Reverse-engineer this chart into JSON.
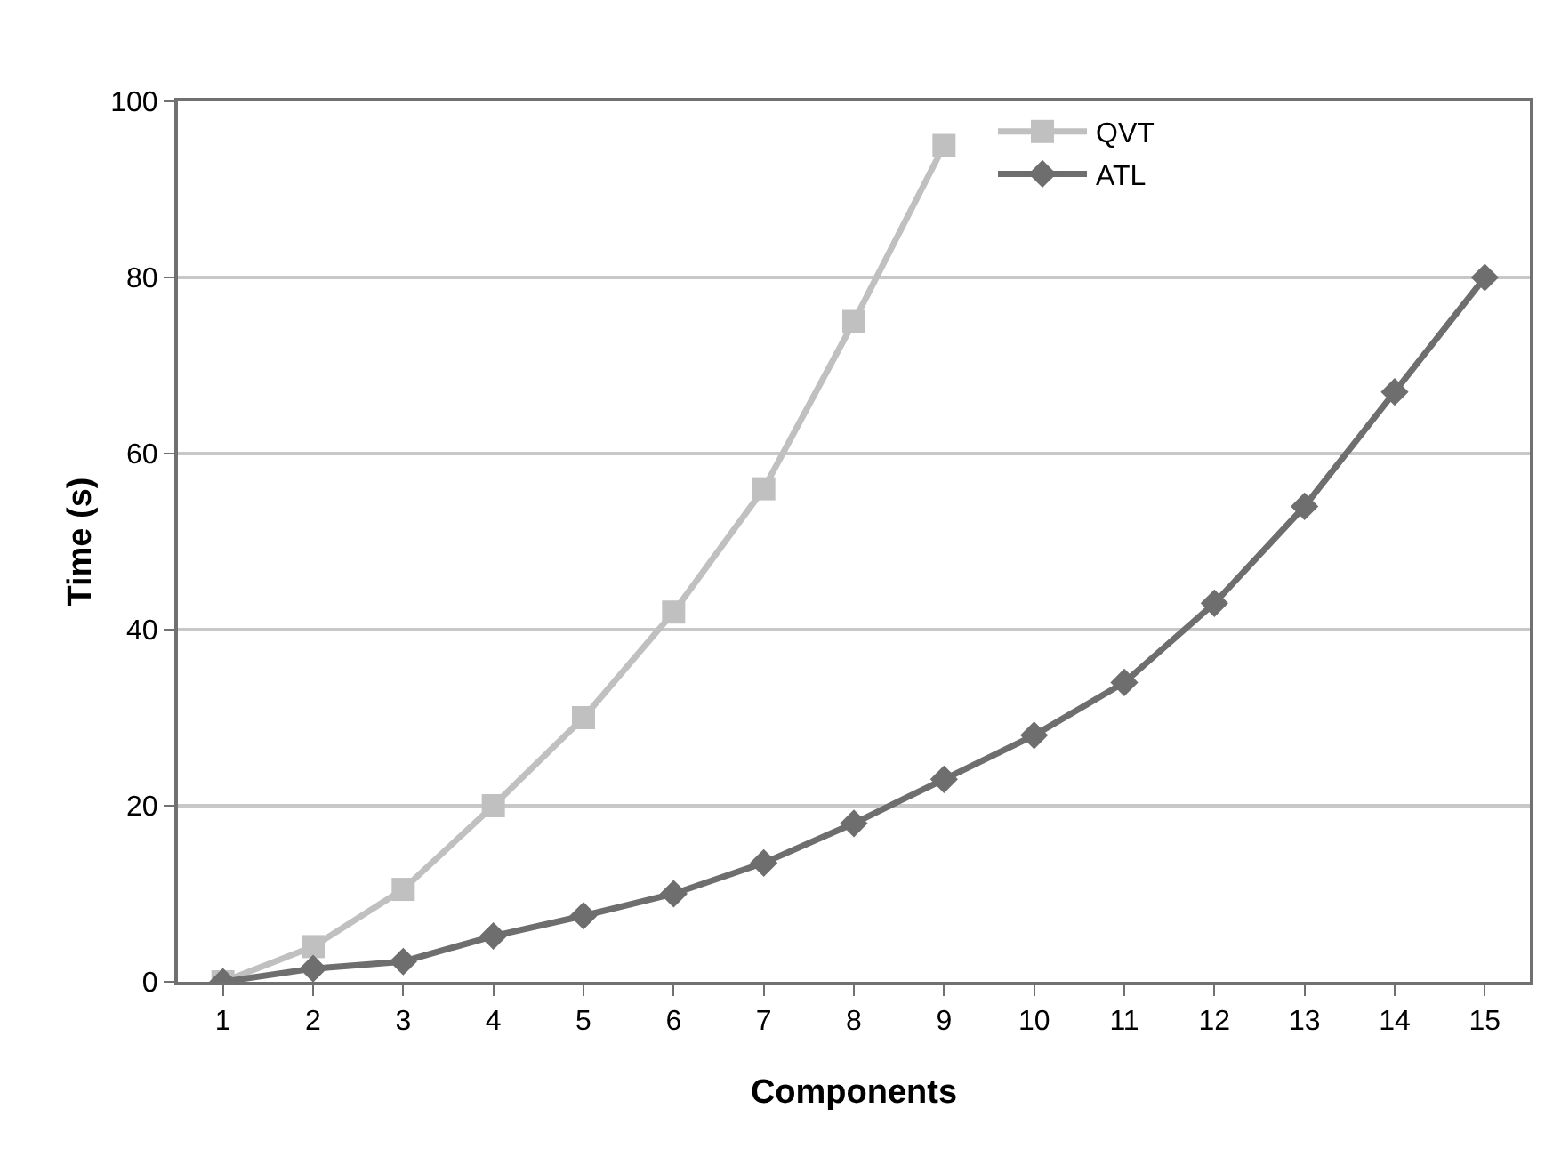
{
  "chart_data": {
    "type": "line",
    "xlabel": "Components",
    "ylabel": "Time (s)",
    "x": [
      1,
      2,
      3,
      4,
      5,
      6,
      7,
      8,
      9,
      10,
      11,
      12,
      13,
      14,
      15
    ],
    "xlim": [
      0.5,
      15.5
    ],
    "xticks": [
      1,
      2,
      3,
      4,
      5,
      6,
      7,
      8,
      9,
      10,
      11,
      12,
      13,
      14,
      15
    ],
    "ylim": [
      0,
      100
    ],
    "yticks": [
      0,
      20,
      40,
      60,
      80,
      100
    ],
    "grid": "y",
    "legend": "top right",
    "series": [
      {
        "name": "QVT",
        "color": "#c0c0c0",
        "marker": "square",
        "values": [
          0,
          4,
          10.5,
          20,
          30,
          42,
          56,
          75,
          95,
          null,
          null,
          null,
          null,
          null,
          null
        ]
      },
      {
        "name": "ATL",
        "color": "#6e6e6e",
        "marker": "diamond",
        "values": [
          0,
          1.5,
          2.3,
          5.2,
          7.5,
          10,
          13.5,
          18,
          23,
          28,
          34,
          43,
          54,
          67,
          80
        ]
      }
    ]
  }
}
